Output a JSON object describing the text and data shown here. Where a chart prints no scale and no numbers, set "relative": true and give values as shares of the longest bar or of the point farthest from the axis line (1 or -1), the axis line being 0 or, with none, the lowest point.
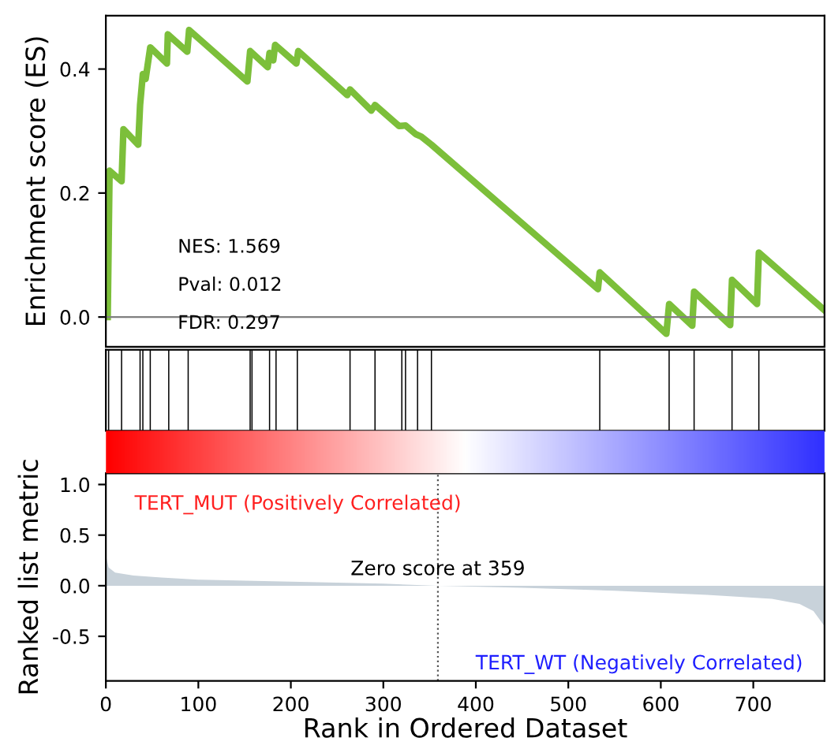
{
  "chart_data": [
    {
      "type": "line",
      "ylabel": "Enrichment score (ES)",
      "xlim": [
        0,
        777
      ],
      "ylim": [
        -0.048,
        0.486
      ],
      "yticks": [
        {
          "value": 0.0,
          "label": "0.0"
        },
        {
          "value": 0.2,
          "label": "0.2"
        },
        {
          "value": 0.4,
          "label": "0.4"
        }
      ],
      "tick_labels": "y",
      "grid": false,
      "series": [
        {
          "color": "#7cbf3a",
          "x": [
            2,
            4,
            17,
            19,
            35,
            37,
            40,
            43,
            48,
            66,
            67,
            88,
            90,
            153,
            156,
            175,
            177,
            181,
            183,
            206,
            208,
            261,
            264,
            287,
            291,
            317,
            324,
            335,
            341,
            352,
            532,
            534,
            606,
            609,
            634,
            636,
            675,
            677,
            704,
            706,
            777
          ],
          "values": [
            0.0,
            0.236,
            0.219,
            0.303,
            0.278,
            0.342,
            0.392,
            0.384,
            0.435,
            0.409,
            0.456,
            0.428,
            0.463,
            0.38,
            0.429,
            0.403,
            0.426,
            0.414,
            0.439,
            0.409,
            0.429,
            0.358,
            0.367,
            0.333,
            0.342,
            0.308,
            0.309,
            0.295,
            0.291,
            0.278,
            0.045,
            0.072,
            -0.027,
            0.021,
            -0.014,
            0.041,
            -0.013,
            0.06,
            0.021,
            0.104,
            0.011
          ]
        }
      ],
      "ref_lines": [
        {
          "axis": "y",
          "value": 0,
          "color": "#808080"
        }
      ],
      "annotations": [
        "NES: 1.569",
        "Pval: 0.012",
        "FDR: 0.297"
      ]
    },
    {
      "type": "bar",
      "relative": true,
      "xlim": [
        0,
        777
      ],
      "tick_labels": false,
      "x": [
        3,
        17,
        37,
        40,
        48,
        68,
        89,
        156,
        158,
        177,
        184,
        207,
        264,
        291,
        320,
        324,
        337,
        352,
        534,
        609,
        636,
        677,
        706
      ],
      "values": [
        1,
        1,
        1,
        1,
        1,
        1,
        1,
        1,
        1,
        1,
        1,
        1,
        1,
        1,
        1,
        1,
        1,
        1,
        1,
        1,
        1,
        1,
        1
      ],
      "color": "#000000"
    },
    {
      "type": "area",
      "xlabel": "Rank in Ordered Dataset",
      "ylabel": "Ranked list metric",
      "xlim": [
        0,
        777
      ],
      "ylim": [
        -0.94,
        1.11
      ],
      "xticks": [
        0,
        100,
        200,
        300,
        400,
        500,
        600,
        700
      ],
      "yticks": [
        {
          "value": -0.5,
          "label": "-0.5"
        },
        {
          "value": 0.0,
          "label": "0.0"
        },
        {
          "value": 0.5,
          "label": "0.5"
        },
        {
          "value": 1.0,
          "label": "1.0"
        }
      ],
      "grid": false,
      "series": [
        {
          "color": "#c8d2da",
          "x": [
            0,
            3,
            10,
            30,
            60,
            100,
            200,
            300,
            359,
            450,
            550,
            650,
            720,
            750,
            765,
            777
          ],
          "values": [
            0.3,
            0.18,
            0.13,
            0.1,
            0.08,
            0.06,
            0.04,
            0.02,
            0,
            -0.02,
            -0.05,
            -0.09,
            -0.13,
            -0.18,
            -0.25,
            -0.4
          ]
        }
      ],
      "ref_lines": [
        {
          "axis": "x",
          "value": 359,
          "label": "Zero score at 359",
          "line_style": "dotted",
          "color": "#555555"
        }
      ],
      "annotations": [
        "TERT_MUT (Positively Correlated)",
        "TERT_WT (Negatively Correlated)"
      ]
    }
  ]
}
